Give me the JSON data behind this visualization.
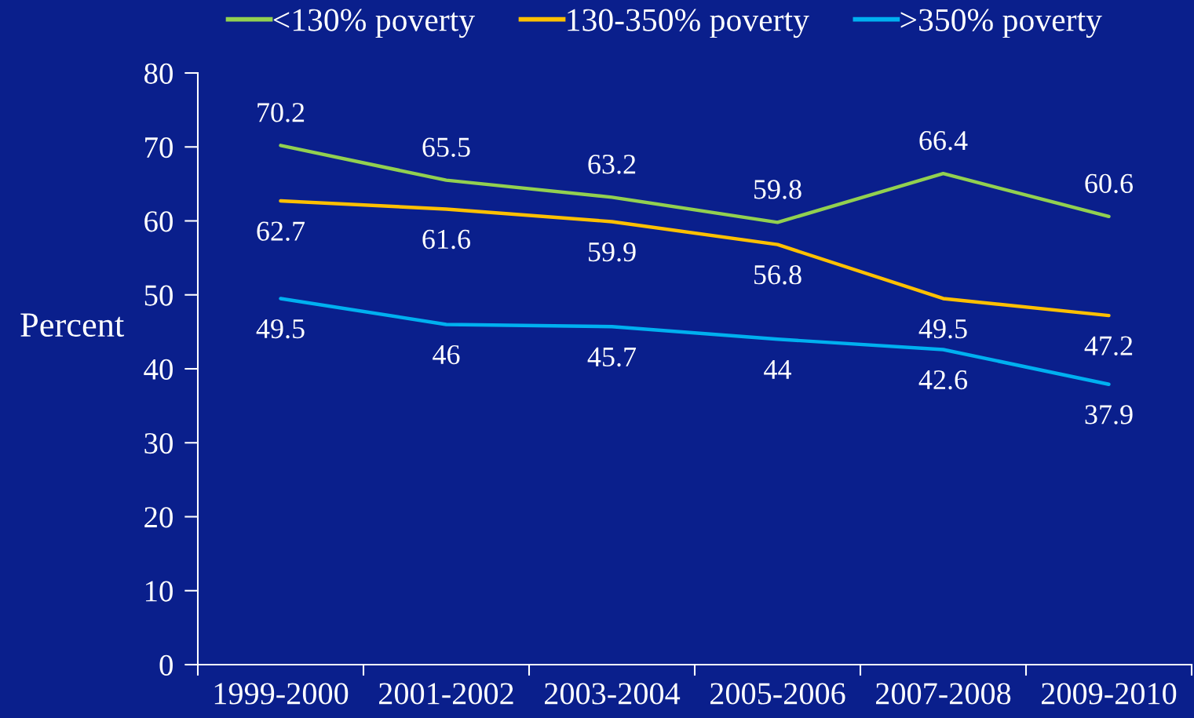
{
  "chart_data": {
    "type": "line",
    "categories": [
      "1999-2000",
      "2001-2002",
      "2003-2004",
      "2005-2006",
      "2007-2008",
      "2009-2010"
    ],
    "ylabel": "Percent",
    "ylim": [
      0,
      80
    ],
    "yticks": [
      0,
      10,
      20,
      30,
      40,
      50,
      60,
      70,
      80
    ],
    "series": [
      {
        "name": "<130% poverty",
        "color": "#92d050",
        "values": [
          70.2,
          65.5,
          63.2,
          59.8,
          66.4,
          60.6
        ]
      },
      {
        "name": "130-350% poverty",
        "color": "#ffc000",
        "values": [
          62.7,
          61.6,
          59.9,
          56.8,
          49.5,
          47.2
        ]
      },
      {
        "name": ">350% poverty",
        "color": "#00b0f0",
        "values": [
          49.5,
          46,
          45.7,
          44,
          42.6,
          37.9
        ]
      }
    ],
    "data_labels": true,
    "legend": "top",
    "grid": false,
    "marker": "none",
    "line_style": "solid"
  }
}
